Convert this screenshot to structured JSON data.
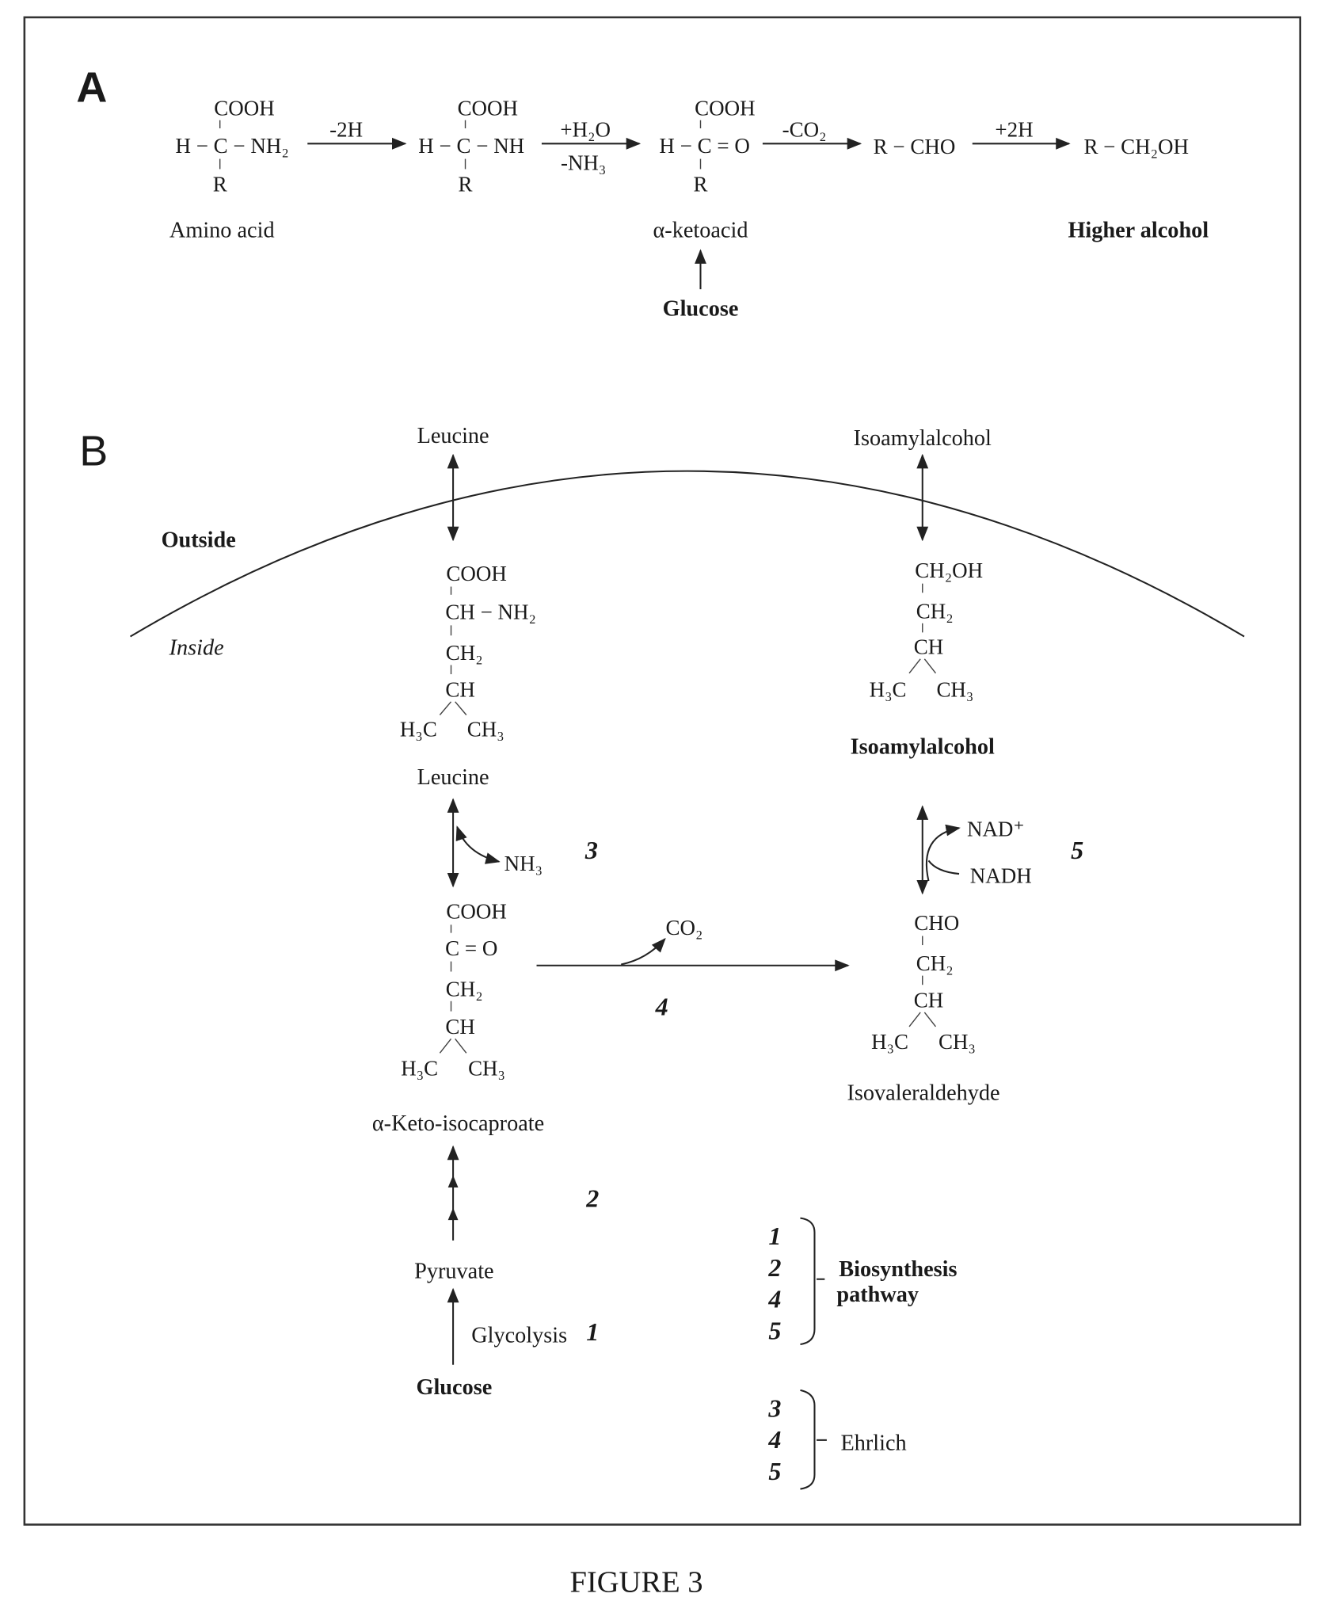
{
  "panel_a": {
    "label": "A",
    "amino_acid": {
      "top": "COOH",
      "middle": "H − C − NH₂",
      "bottom": "R",
      "name": "Amino acid"
    },
    "step1": "-2H",
    "imino": {
      "top": "COOH",
      "middle": "H − C − NH",
      "bottom": "R"
    },
    "step2_top": "+H₂O",
    "step2_bottom": "-NH₃",
    "ketoacid": {
      "top": "COOH",
      "middle": "H − C = O",
      "bottom": "R",
      "name": "α-ketoacid"
    },
    "step3": "-CO₂",
    "aldehyde": "R − CHO",
    "step4": "+2H",
    "alcohol": {
      "formula": "R − CH₂OH",
      "name": "Higher alcohol"
    },
    "glucose": "Glucose"
  },
  "panel_b": {
    "label": "B",
    "outside": "Outside",
    "inside": "Inside",
    "leucine_ext": "Leucine",
    "isoamyl_ext": "Isoamylalcohol",
    "leucine": {
      "l1": "COOH",
      "l2": "CH − NH₂",
      "l3": "CH₂",
      "l4": "CH",
      "l5a": "H₃C",
      "l5b": "CH₃",
      "name": "Leucine"
    },
    "step3": {
      "product": "NH₃",
      "number": "3"
    },
    "keto": {
      "l1": "COOH",
      "l2": "C = O",
      "l3": "CH₂",
      "l4": "CH",
      "l5a": "H₃C",
      "l5b": "CH₃",
      "name": "α-Keto-isocaproate"
    },
    "step4": {
      "product": "CO₂",
      "number": "4"
    },
    "isoamyl": {
      "l1": "CH₂OH",
      "l2": "CH₂",
      "l3": "CH",
      "l4a": "H₃C",
      "l4b": "CH₃",
      "name": "Isoamylalcohol"
    },
    "step5": {
      "a": "NAD⁺",
      "b": "NADH",
      "number": "5"
    },
    "isovaler": {
      "l1": "CHO",
      "l2": "CH₂",
      "l3": "CH",
      "l4a": "H₃C",
      "l4b": "CH₃",
      "name": "Isovaleraldehyde"
    },
    "step2": {
      "number": "2"
    },
    "pyruvate": "Pyruvate",
    "step1": {
      "label": "Glycolysis",
      "number": "1"
    },
    "glucose": "Glucose",
    "legend": {
      "biosynthesis": {
        "numbers": [
          "1",
          "2",
          "4",
          "5"
        ],
        "label_line1": "Biosynthesis",
        "label_line2": "pathway"
      },
      "ehrlich": {
        "numbers": [
          "3",
          "4",
          "5"
        ],
        "label": "Ehrlich"
      }
    }
  },
  "caption": "FIGURE 3"
}
